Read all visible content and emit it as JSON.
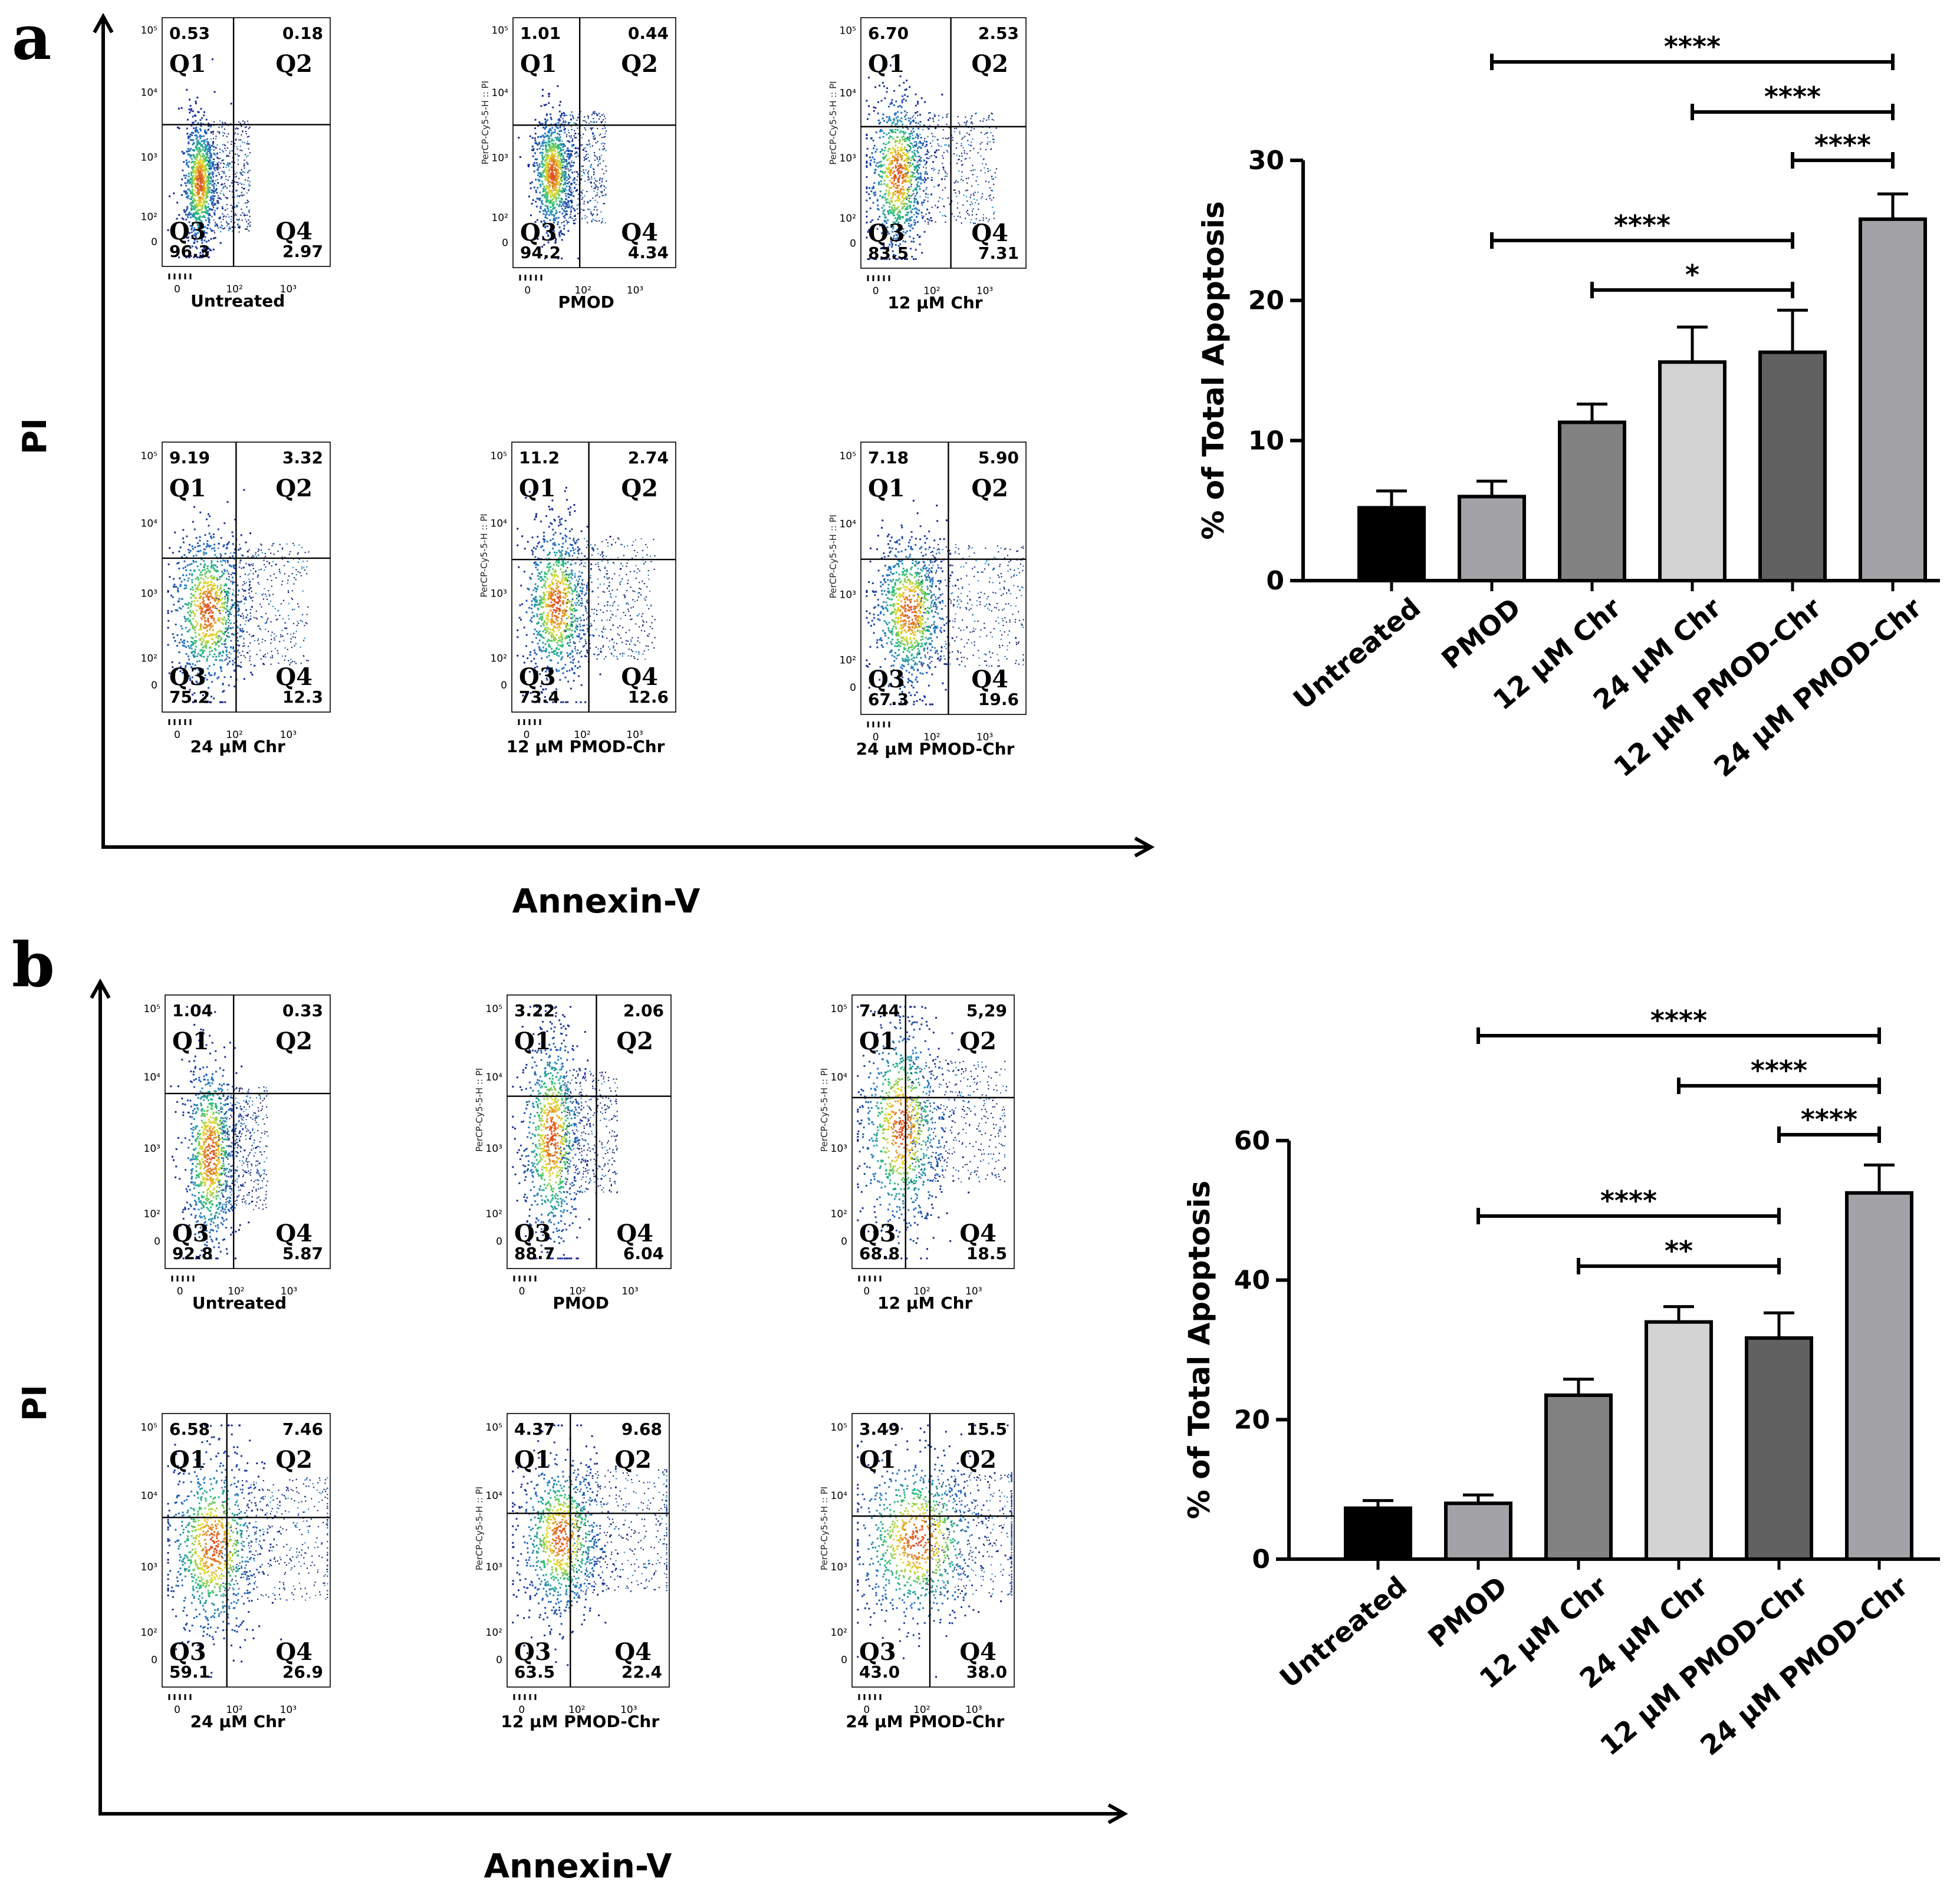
{
  "figure": {
    "panels": [
      {
        "letter": "a",
        "y_axis_title": "PI",
        "x_axis_title": "Annexin-V",
        "rotated_axis_label": "PerCP-Cy5-5-H :: PI",
        "flow_plots": [
          {
            "sample": "Untreated",
            "q1": "0.53",
            "q2": "0.18",
            "q3": "96.3",
            "q4": "2.97",
            "show_rotated_label": false
          },
          {
            "sample": "PMOD",
            "q1": "1.01",
            "q2": "0.44",
            "q3": "94.2",
            "q4": "4.34",
            "show_rotated_label": true
          },
          {
            "sample": "12 µM Chr",
            "q1": "6.70",
            "q2": "2.53",
            "q3": "83.5",
            "q4": "7.31",
            "show_rotated_label": true
          },
          {
            "sample": "24 µM Chr",
            "q1": "9.19",
            "q2": "3.32",
            "q3": "75.2",
            "q4": "12.3",
            "show_rotated_label": false
          },
          {
            "sample": "12 µM PMOD-Chr",
            "q1": "11.2",
            "q2": "2.74",
            "q3": "73.4",
            "q4": "12.6",
            "show_rotated_label": true
          },
          {
            "sample": "24 µM PMOD-Chr",
            "q1": "7.18",
            "q2": "5.90",
            "q3": "67.3",
            "q4": "19.6",
            "show_rotated_label": true
          }
        ]
      },
      {
        "letter": "b",
        "y_axis_title": "PI",
        "x_axis_title": "Annexin-V",
        "rotated_axis_label": "PerCP-Cy5-5-H :: PI",
        "flow_plots": [
          {
            "sample": "Untreated",
            "q1": "1.04",
            "q2": "0.33",
            "q3": "92.8",
            "q4": "5.87",
            "show_rotated_label": false
          },
          {
            "sample": "PMOD",
            "q1": "3.22",
            "q2": "2.06",
            "q3": "88.7",
            "q4": "6.04",
            "show_rotated_label": true
          },
          {
            "sample": "12 µM Chr",
            "q1": "7.44",
            "q2": "5,29",
            "q3": "68.8",
            "q4": "18.5",
            "show_rotated_label": true
          },
          {
            "sample": "24 µM Chr",
            "q1": "6.58",
            "q2": "7.46",
            "q3": "59.1",
            "q4": "26.9",
            "show_rotated_label": false
          },
          {
            "sample": "12 µM PMOD-Chr",
            "q1": "4.37",
            "q2": "9.68",
            "q3": "63.5",
            "q4": "22.4",
            "show_rotated_label": true
          },
          {
            "sample": "24 µM PMOD-Chr",
            "q1": "3.49",
            "q2": "15.5",
            "q3": "43.0",
            "q4": "38.0",
            "show_rotated_label": true
          }
        ]
      }
    ],
    "quadrant_names": [
      "Q1",
      "Q2",
      "Q3",
      "Q4"
    ],
    "flow_ticks": {
      "y": [
        "10⁵",
        "10⁴",
        "10³",
        "10²",
        "0"
      ],
      "x": [
        "0",
        "10²",
        "10³"
      ]
    }
  },
  "chart_data": [
    {
      "type": "bar",
      "panel": "a",
      "categories": [
        "Untreated",
        "PMOD",
        "12 µM Chr",
        "24 µM Chr",
        "12 µM PMOD-Chr",
        "24 µM PMOD-Chr"
      ],
      "values": [
        5.2,
        6.0,
        11.3,
        15.6,
        16.3,
        25.8
      ],
      "errors": [
        1.2,
        1.1,
        1.3,
        2.5,
        3.0,
        1.8
      ],
      "colors": [
        "#000000",
        "#a3a3a7",
        "#828282",
        "#d3d3d3",
        "#616161",
        "#a3a3a7"
      ],
      "title": "",
      "xlabel": "",
      "ylabel": "% of Total Apoptosis",
      "ylim": [
        0,
        30
      ],
      "yticks": [
        0,
        10,
        20,
        30
      ],
      "grid": false,
      "significance": [
        {
          "from": 1,
          "to": 5,
          "label": "****"
        },
        {
          "from": 3,
          "to": 5,
          "label": "****"
        },
        {
          "from": 4,
          "to": 5,
          "label": "****"
        },
        {
          "from": 1,
          "to": 4,
          "label": "****"
        },
        {
          "from": 2,
          "to": 4,
          "label": "*"
        }
      ]
    },
    {
      "type": "bar",
      "panel": "b",
      "categories": [
        "Untreated",
        "PMOD",
        "12 µM Chr",
        "24 µM Chr",
        "12 µM PMOD-Chr",
        "24 µM PMOD-Chr"
      ],
      "values": [
        7.3,
        8.0,
        23.5,
        34.0,
        31.7,
        52.5
      ],
      "errors": [
        1.1,
        1.2,
        2.3,
        2.2,
        3.6,
        4.0
      ],
      "colors": [
        "#000000",
        "#a3a3a7",
        "#828282",
        "#d3d3d3",
        "#616161",
        "#a3a3a7"
      ],
      "title": "",
      "xlabel": "",
      "ylabel": "% of Total Apoptosis",
      "ylim": [
        0,
        60
      ],
      "yticks": [
        0,
        20,
        40,
        60
      ],
      "grid": false,
      "significance": [
        {
          "from": 1,
          "to": 5,
          "label": "****"
        },
        {
          "from": 3,
          "to": 5,
          "label": "****"
        },
        {
          "from": 4,
          "to": 5,
          "label": "****"
        },
        {
          "from": 1,
          "to": 4,
          "label": "****"
        },
        {
          "from": 2,
          "to": 4,
          "label": "**"
        }
      ]
    }
  ]
}
